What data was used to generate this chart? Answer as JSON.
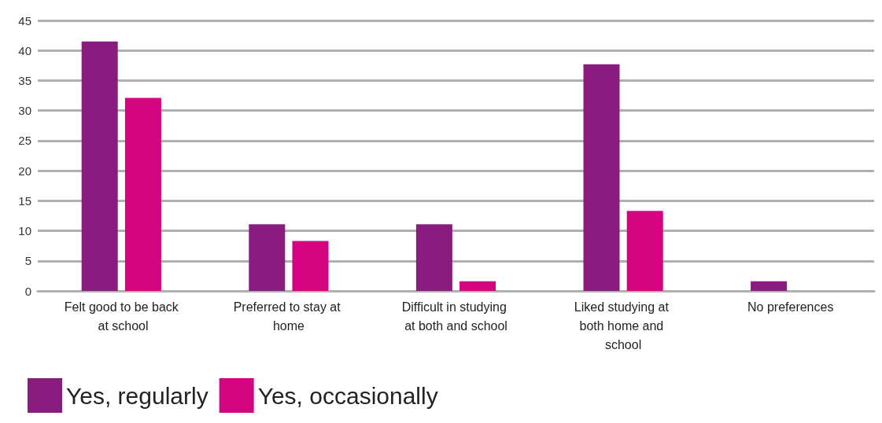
{
  "chart_data": {
    "type": "bar",
    "categories": [
      "Felt good to be back at school",
      "Preferred to stay at home",
      "Difficult in studying at both and school",
      "Liked studying at both home and school",
      "No preferences"
    ],
    "series": [
      {
        "name": "Yes, regularly",
        "color": "#8b1c7f",
        "values": [
          41.5,
          11.1,
          11.1,
          37.7,
          1.6
        ]
      },
      {
        "name": "Yes, occasionally",
        "color": "#d4037f",
        "values": [
          32.1,
          8.3,
          1.6,
          13.3,
          0
        ]
      }
    ],
    "ylim": [
      0,
      45
    ],
    "yticks": [
      0,
      5,
      10,
      15,
      20,
      25,
      30,
      35,
      40,
      45
    ],
    "grid": "y",
    "legend": "bottom left"
  }
}
